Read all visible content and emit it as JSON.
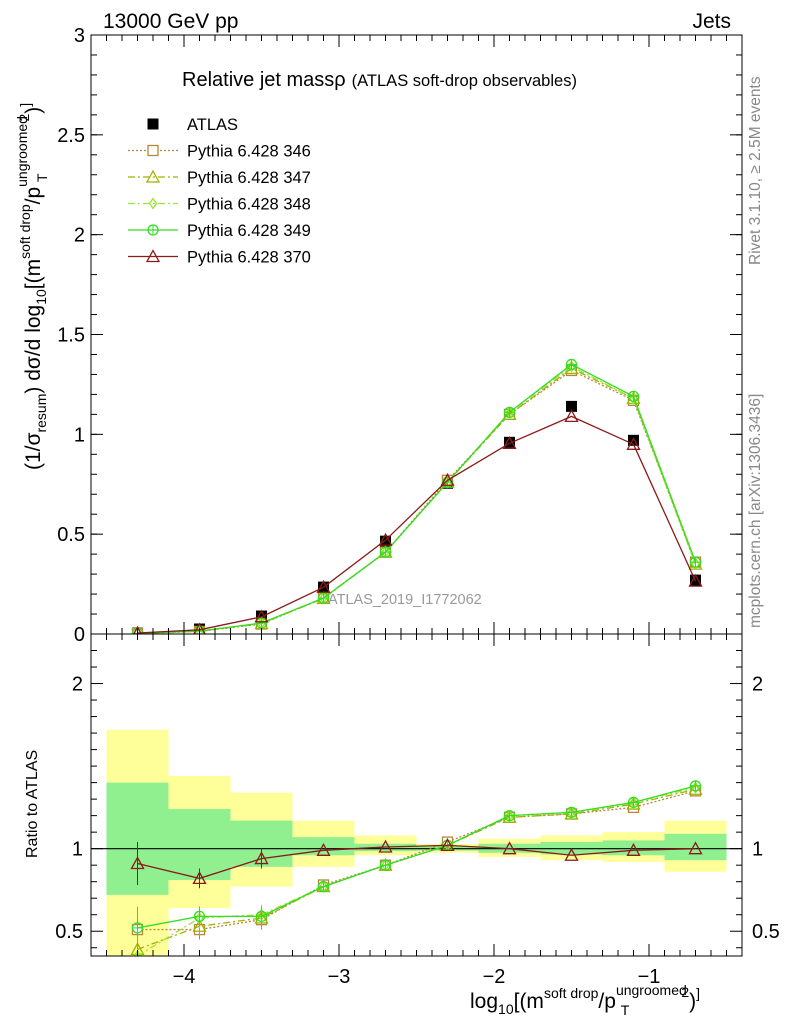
{
  "header": {
    "left_label": "13000 GeV pp",
    "right_label": "Jets"
  },
  "side": {
    "rivet_text": "Rivet 3.1.10, ≥ 2.5M events",
    "mcplots_text": "mcplots.cern.ch [arXiv:1306.3436]"
  },
  "chart_data": [
    {
      "type": "line",
      "title": "Relative jet massρ",
      "subtitle": "(ATLAS soft-drop observables)",
      "watermark": "ATLAS_2019_I1772062",
      "ylabel": "(1/σresum) dσ/d log10[(m^soft drop/pT^ungroomed)2]",
      "xlim": [
        -4.6,
        -0.4
      ],
      "ylim": [
        0,
        3
      ],
      "yticks": [
        0,
        0.5,
        1,
        1.5,
        2,
        2.5,
        3
      ],
      "yticklabels": [
        "0",
        "0.5",
        "1",
        "1.5",
        "2",
        "2.5",
        "3"
      ],
      "grid": false,
      "legend_position": "top-left",
      "x": [
        -4.3,
        -3.9,
        -3.5,
        -3.1,
        -2.7,
        -2.3,
        -1.9,
        -1.5,
        -1.1,
        -0.7
      ],
      "series": [
        {
          "name": "ATLAS",
          "color": "#000000",
          "marker": "filled-square",
          "dash": "none",
          "show_line": false,
          "values": [
            0.005,
            0.025,
            0.09,
            0.235,
            0.465,
            0.755,
            0.96,
            1.14,
            0.97,
            0.27
          ]
        },
        {
          "name": "Pythia 6.428 346",
          "color": "#b8853b",
          "marker": "open-square",
          "dash": "dotted",
          "show_line": true,
          "values": [
            0.003,
            0.013,
            0.05,
            0.18,
            0.41,
            0.77,
            1.1,
            1.32,
            1.17,
            0.36
          ]
        },
        {
          "name": "Pythia 6.428 347",
          "color": "#9eb400",
          "marker": "open-triangle",
          "dash": "dashdot",
          "show_line": true,
          "values": [
            0.002,
            0.013,
            0.052,
            0.178,
            0.41,
            0.76,
            1.1,
            1.33,
            1.18,
            0.35
          ]
        },
        {
          "name": "Pythia 6.428 348",
          "color": "#99e635",
          "marker": "open-diamond",
          "dash": "dashdot",
          "show_line": true,
          "values": [
            0.003,
            0.014,
            0.053,
            0.18,
            0.41,
            0.76,
            1.11,
            1.34,
            1.18,
            0.35
          ]
        },
        {
          "name": "Pythia 6.428 349",
          "color": "#33dd22",
          "marker": "open-circle-cross",
          "dash": "solid",
          "show_line": true,
          "values": [
            0.003,
            0.015,
            0.055,
            0.18,
            0.41,
            0.76,
            1.11,
            1.35,
            1.19,
            0.36
          ]
        },
        {
          "name": "Pythia 6.428 370",
          "color": "#8b1a1a",
          "marker": "open-triangle",
          "dash": "solid",
          "show_line": true,
          "values": [
            0.005,
            0.021,
            0.086,
            0.234,
            0.47,
            0.77,
            0.955,
            1.09,
            0.95,
            0.265
          ]
        }
      ]
    },
    {
      "type": "line",
      "ylabel": "Ratio to ATLAS",
      "xlabel": "log10[(m^soft drop/pT^ungroomed)2]",
      "xlim": [
        -4.6,
        -0.4
      ],
      "ylim": [
        0.35,
        2.3
      ],
      "yticks": [
        0.5,
        1,
        2
      ],
      "yticklabels": [
        "0.5",
        "1",
        "2"
      ],
      "xticks": [
        -4,
        -3,
        -2,
        -1
      ],
      "xticklabels": [
        "−4",
        "−3",
        "−2",
        "−1"
      ],
      "reference_line": 1,
      "bands": {
        "bin_edges": [
          -4.5,
          -4.1,
          -3.7,
          -3.3,
          -2.9,
          -2.5,
          -2.1,
          -1.7,
          -1.3,
          -0.9,
          -0.5
        ],
        "inner_color": "#90f090",
        "outer_color": "#ffff99",
        "inner_low": [
          0.72,
          0.81,
          0.89,
          0.96,
          0.985,
          0.988,
          0.975,
          0.965,
          0.96,
          0.93
        ],
        "inner_high": [
          1.4,
          1.24,
          1.17,
          1.07,
          1.03,
          1.016,
          1.03,
          1.04,
          1.05,
          1.09
        ],
        "outer_low": [
          0.35,
          0.64,
          0.77,
          0.89,
          0.96,
          0.975,
          0.95,
          0.93,
          0.92,
          0.86
        ],
        "outer_high": [
          1.72,
          1.44,
          1.34,
          1.17,
          1.08,
          1.028,
          1.06,
          1.08,
          1.1,
          1.17
        ]
      },
      "x": [
        -4.3,
        -3.9,
        -3.5,
        -3.1,
        -2.7,
        -2.3,
        -1.9,
        -1.5,
        -1.1,
        -0.7
      ],
      "series": [
        {
          "name": "Pythia 6.428 346",
          "color": "#b8853b",
          "marker": "open-square",
          "dash": "dotted",
          "values": [
            0.51,
            0.51,
            0.57,
            0.78,
            0.9,
            1.04,
            1.19,
            1.21,
            1.25,
            1.35
          ]
        },
        {
          "name": "Pythia 6.428 347",
          "color": "#9eb400",
          "marker": "open-triangle",
          "dash": "dashdot",
          "values": [
            0.39,
            0.53,
            0.58,
            0.77,
            0.9,
            1.02,
            1.19,
            1.21,
            1.27,
            1.36
          ]
        },
        {
          "name": "Pythia 6.428 348",
          "color": "#99e635",
          "marker": "open-diamond",
          "dash": "dashdot",
          "values": [
            0.35,
            0.58,
            0.6,
            0.77,
            0.9,
            1.02,
            1.2,
            1.22,
            1.28,
            1.37
          ]
        },
        {
          "name": "Pythia 6.428 349",
          "color": "#33dd22",
          "marker": "open-circle-cross",
          "dash": "solid",
          "values": [
            0.52,
            0.59,
            0.59,
            0.77,
            0.9,
            1.02,
            1.2,
            1.22,
            1.28,
            1.38
          ]
        },
        {
          "name": "Pythia 6.428 370",
          "color": "#8b1a1a",
          "marker": "open-triangle",
          "dash": "solid",
          "values": [
            0.91,
            0.82,
            0.94,
            0.99,
            1.01,
            1.02,
            1.0,
            0.96,
            0.99,
            1.0
          ]
        }
      ]
    }
  ]
}
